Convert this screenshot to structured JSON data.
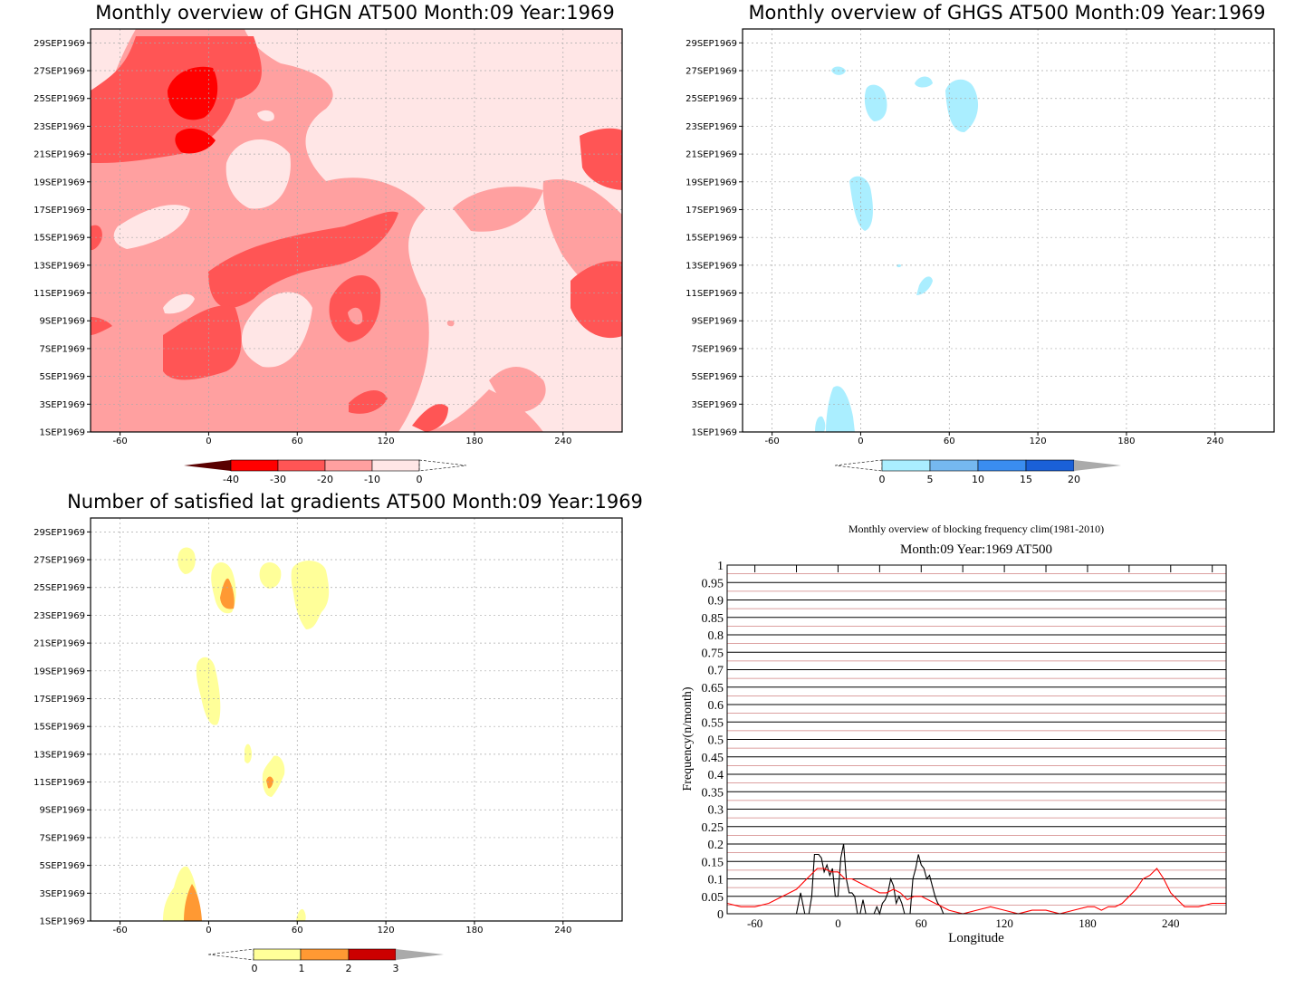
{
  "panels": [
    {
      "title": "Monthly overview of GHGN AT500 Month:09 Year:1969",
      "yticks": [
        "29SEP1969",
        "27SEP1969",
        "25SEP1969",
        "23SEP1969",
        "21SEP1969",
        "19SEP1969",
        "17SEP1969",
        "15SEP1969",
        "13SEP1969",
        "11SEP1969",
        "9SEP1969",
        "7SEP1969",
        "5SEP1969",
        "3SEP1969",
        "1SEP1969"
      ],
      "xticks": [
        "-60",
        "0",
        "60",
        "120",
        "180",
        "240"
      ],
      "colorbar": {
        "labels": [
          "-40",
          "-30",
          "-20",
          "-10",
          "0"
        ],
        "colors": [
          "#5a0000",
          "#ff0000",
          "#ff5555",
          "#ffa0a0",
          "#ffe6e6"
        ]
      }
    },
    {
      "title": "Monthly overview of GHGS AT500 Month:09 Year:1969",
      "yticks": [
        "29SEP1969",
        "27SEP1969",
        "25SEP1969",
        "23SEP1969",
        "21SEP1969",
        "19SEP1969",
        "17SEP1969",
        "15SEP1969",
        "13SEP1969",
        "11SEP1969",
        "9SEP1969",
        "7SEP1969",
        "5SEP1969",
        "3SEP1969",
        "1SEP1969"
      ],
      "xticks": [
        "-60",
        "0",
        "60",
        "120",
        "180",
        "240"
      ],
      "colorbar": {
        "labels": [
          "0",
          "5",
          "10",
          "15",
          "20"
        ],
        "colors": [
          "#aaeeff",
          "#75b8f0",
          "#3a8df0",
          "#1a60d8",
          "#aaaaaa"
        ]
      }
    },
    {
      "title": "Number of satisfied lat gradients AT500 Month:09 Year:1969",
      "yticks": [
        "29SEP1969",
        "27SEP1969",
        "25SEP1969",
        "23SEP1969",
        "21SEP1969",
        "19SEP1969",
        "17SEP1969",
        "15SEP1969",
        "13SEP1969",
        "11SEP1969",
        "9SEP1969",
        "7SEP1969",
        "5SEP1969",
        "3SEP1969",
        "1SEP1969"
      ],
      "xticks": [
        "-60",
        "0",
        "60",
        "120",
        "180",
        "240"
      ],
      "colorbar": {
        "labels": [
          "0",
          "1",
          "2",
          "3"
        ],
        "colors": [
          "#ffff99",
          "#ff9933",
          "#cc0000",
          "#aaaaaa"
        ]
      }
    }
  ],
  "chart_data": {
    "type": "line",
    "title": "Monthly overview of blocking frequency clim(1981-2010)",
    "subtitle": "Month:09 Year:1969  AT500",
    "xlabel": "Longitude",
    "ylabel": "Frequency(n/month)",
    "xlim": [
      -80,
      280
    ],
    "ylim": [
      0,
      1
    ],
    "xticks": [
      "-60",
      "0",
      "60",
      "120",
      "180",
      "240"
    ],
    "yticks": [
      "0",
      "0.05",
      "0.1",
      "0.15",
      "0.2",
      "0.25",
      "0.3",
      "0.35",
      "0.4",
      "0.45",
      "0.5",
      "0.55",
      "0.6",
      "0.65",
      "0.7",
      "0.75",
      "0.8",
      "0.85",
      "0.9",
      "0.95",
      "1"
    ],
    "series": [
      {
        "color": "#000000",
        "x": [
          -80,
          -30,
          -27,
          -24,
          -21,
          -19,
          -17,
          -14,
          -12,
          -10,
          -8,
          -6,
          -4,
          -2,
          0,
          2,
          4,
          6,
          8,
          10,
          12,
          14,
          16,
          18,
          20,
          22,
          24,
          26,
          28,
          30,
          32,
          34,
          36,
          38,
          40,
          42,
          44,
          46,
          48,
          50,
          52,
          54,
          56,
          58,
          60,
          62,
          64,
          66,
          68,
          70,
          72,
          74,
          76,
          78,
          80,
          82,
          280
        ],
        "y": [
          0,
          0,
          0.06,
          0,
          0,
          0.05,
          0.17,
          0.17,
          0.16,
          0.12,
          0.14,
          0.11,
          0.13,
          0.05,
          0.05,
          0.16,
          0.2,
          0.1,
          0.06,
          0.06,
          0.05,
          0,
          0,
          0.04,
          0,
          0,
          0,
          0,
          0.02,
          0,
          0.03,
          0.04,
          0.06,
          0.1,
          0.08,
          0.03,
          0.05,
          0.03,
          0,
          0,
          0,
          0.1,
          0.13,
          0.17,
          0.14,
          0.13,
          0.1,
          0.11,
          0.08,
          0.05,
          0.03,
          0.02,
          0,
          0,
          0,
          0,
          0
        ]
      },
      {
        "color": "#ff0000",
        "x": [
          -80,
          -70,
          -60,
          -50,
          -40,
          -30,
          -20,
          -15,
          -10,
          -5,
          0,
          5,
          10,
          15,
          20,
          25,
          30,
          35,
          40,
          45,
          50,
          55,
          60,
          65,
          70,
          75,
          80,
          90,
          100,
          110,
          120,
          130,
          140,
          150,
          160,
          170,
          180,
          185,
          190,
          195,
          200,
          205,
          210,
          215,
          220,
          225,
          230,
          235,
          240,
          245,
          250,
          255,
          260,
          270,
          280
        ],
        "y": [
          0.03,
          0.02,
          0.02,
          0.03,
          0.05,
          0.07,
          0.11,
          0.13,
          0.13,
          0.12,
          0.12,
          0.1,
          0.1,
          0.09,
          0.08,
          0.07,
          0.06,
          0.06,
          0.07,
          0.06,
          0.04,
          0.05,
          0.05,
          0.04,
          0.03,
          0.02,
          0.01,
          0,
          0.01,
          0.02,
          0.01,
          0,
          0.01,
          0.01,
          0,
          0.01,
          0.02,
          0.02,
          0.01,
          0.02,
          0.02,
          0.03,
          0.05,
          0.07,
          0.1,
          0.11,
          0.13,
          0.1,
          0.06,
          0.04,
          0.02,
          0.02,
          0.02,
          0.03,
          0.03
        ]
      }
    ]
  }
}
